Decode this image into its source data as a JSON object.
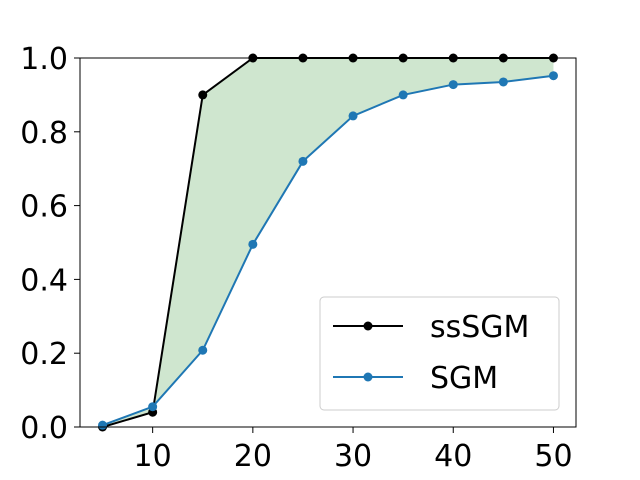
{
  "chart_data": {
    "type": "line",
    "title": "",
    "xlabel": "",
    "ylabel": "",
    "x": [
      5,
      10,
      15,
      20,
      25,
      30,
      35,
      40,
      45,
      50
    ],
    "xlim": [
      2.75,
      52.25
    ],
    "ylim": [
      0.0,
      1.0
    ],
    "xticks": [
      "10",
      "20",
      "30",
      "40",
      "50"
    ],
    "xtick_values": [
      10,
      20,
      30,
      40,
      50
    ],
    "yticks": [
      "0.0",
      "0.2",
      "0.4",
      "0.6",
      "0.8",
      "1.0"
    ],
    "ytick_values": [
      0.0,
      0.2,
      0.4,
      0.6,
      0.8,
      1.0
    ],
    "grid": false,
    "legend": "lower-right",
    "fill_between": {
      "series": [
        "ssSGM",
        "SGM"
      ],
      "color": "#cfe6cf"
    },
    "series": [
      {
        "name": "ssSGM",
        "color": "#000000",
        "values": [
          0.0,
          0.04,
          0.9,
          1.0,
          1.0,
          1.0,
          1.0,
          1.0,
          1.0,
          1.0
        ]
      },
      {
        "name": "SGM",
        "color": "#1f77b4",
        "values": [
          0.005,
          0.055,
          0.208,
          0.495,
          0.72,
          0.843,
          0.9,
          0.928,
          0.935,
          0.952
        ]
      }
    ]
  }
}
